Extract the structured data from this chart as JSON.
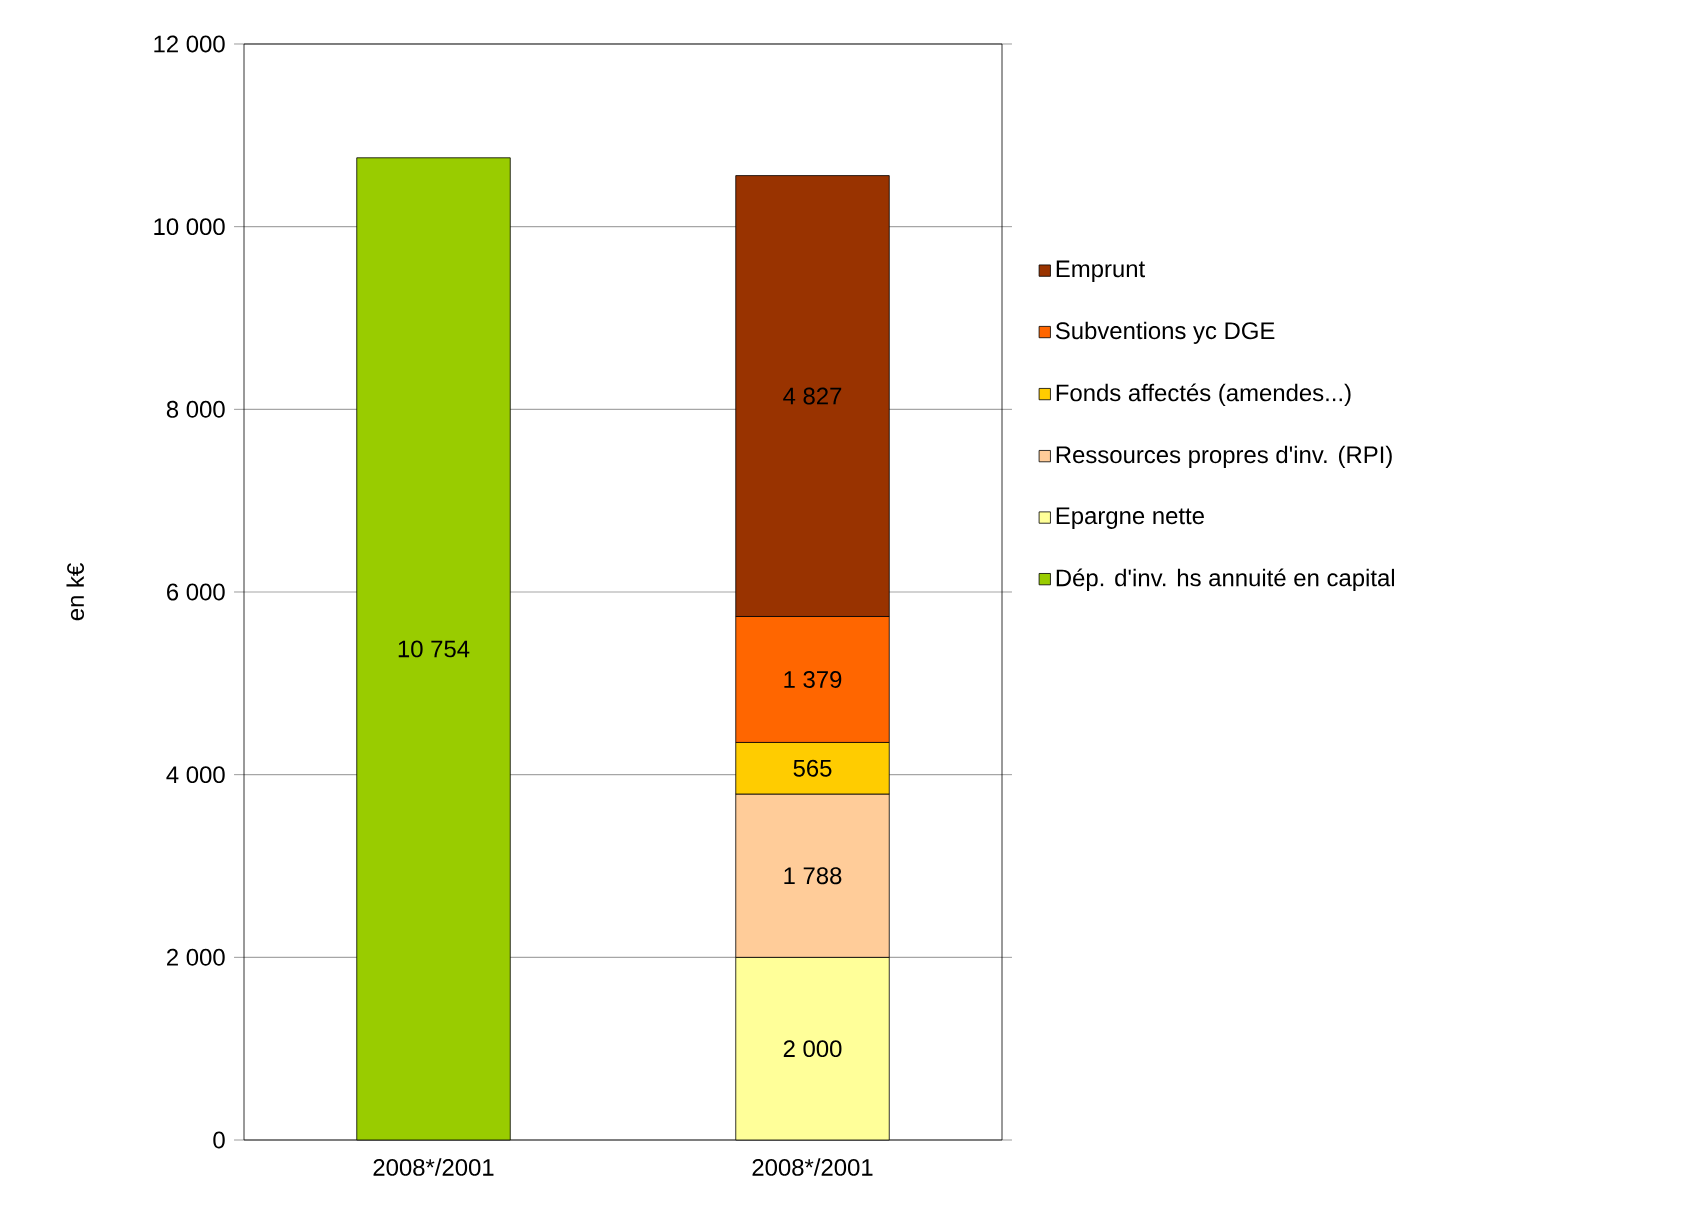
{
  "chart_data": {
    "type": "bar",
    "stacked": true,
    "ylabel": "en k€",
    "categories": [
      "2008*/2001",
      "2008*/2001"
    ],
    "series": [
      {
        "name": "Dép. d'inv. hs annuité en capital",
        "color": "#99cc00",
        "values": [
          10754,
          null
        ],
        "value_labels": [
          "10 754",
          null
        ]
      },
      {
        "name": "Epargne nette",
        "color": "#ffff99",
        "values": [
          null,
          2000
        ],
        "value_labels": [
          null,
          "2 000"
        ]
      },
      {
        "name": "Ressources propres d'inv. (RPI)",
        "color": "#ffcc99",
        "values": [
          null,
          1788
        ],
        "value_labels": [
          null,
          "1 788"
        ]
      },
      {
        "name": "Fonds affectés (amendes...)",
        "color": "#ffcc00",
        "values": [
          null,
          565
        ],
        "value_labels": [
          null,
          "565"
        ]
      },
      {
        "name": "Subventions yc DGE",
        "color": "#ff6600",
        "values": [
          null,
          1379
        ],
        "value_labels": [
          null,
          "1 379"
        ]
      },
      {
        "name": "Emprunt",
        "color": "#993300",
        "values": [
          null,
          4827
        ],
        "value_labels": [
          null,
          "4 827"
        ]
      }
    ],
    "ylim": [
      0,
      12000
    ],
    "yticks": [
      {
        "value": 0,
        "label": "0"
      },
      {
        "value": 2000,
        "label": "2 000"
      },
      {
        "value": 4000,
        "label": "4 000"
      },
      {
        "value": 6000,
        "label": "6 000"
      },
      {
        "value": 8000,
        "label": "8 000"
      },
      {
        "value": 10000,
        "label": "10 000"
      },
      {
        "value": 12000,
        "label": "12 000"
      }
    ],
    "grid": "y",
    "legend": "right"
  }
}
